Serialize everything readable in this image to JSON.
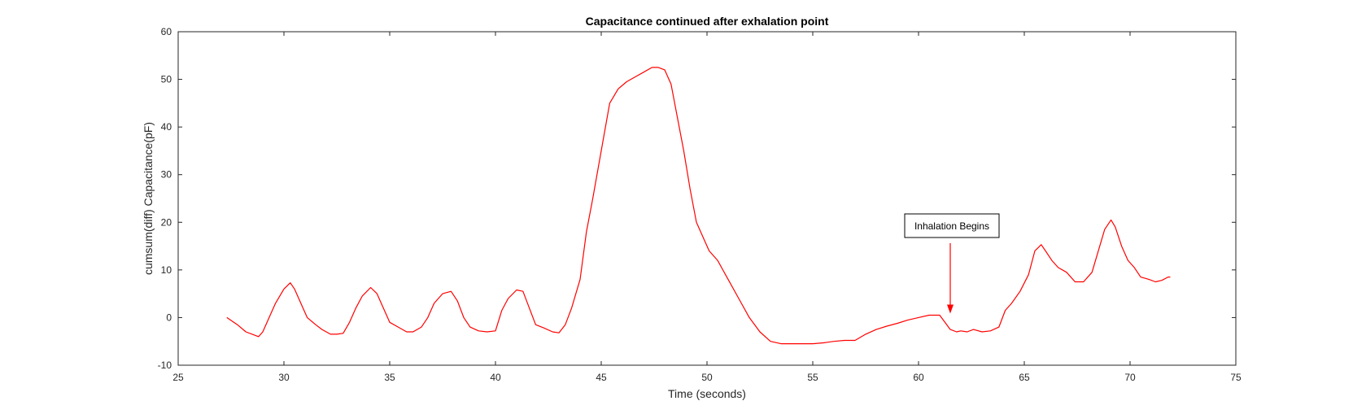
{
  "chart_data": {
    "type": "line",
    "title": "Capacitance continued after exhalation point",
    "xlabel": "Time (seconds)",
    "ylabel": "cumsum(diff) Capacitance(pF)",
    "xlim": [
      25,
      75
    ],
    "ylim": [
      -10,
      60
    ],
    "xticks": [
      25,
      30,
      35,
      40,
      45,
      50,
      55,
      60,
      65,
      70,
      75
    ],
    "yticks": [
      -10,
      0,
      10,
      20,
      30,
      40,
      50,
      60
    ],
    "grid": false,
    "series": [
      {
        "color": "#ff0000",
        "x": [
          27.3,
          27.8,
          28.2,
          28.5,
          28.8,
          29.0,
          29.3,
          29.6,
          30.0,
          30.3,
          30.5,
          30.8,
          31.1,
          31.5,
          31.8,
          32.2,
          32.5,
          32.8,
          33.1,
          33.4,
          33.7,
          34.1,
          34.4,
          34.7,
          35.0,
          35.4,
          35.8,
          36.1,
          36.5,
          36.8,
          37.1,
          37.5,
          37.9,
          38.2,
          38.5,
          38.8,
          39.2,
          39.6,
          40.0,
          40.3,
          40.6,
          41.0,
          41.3,
          41.6,
          41.9,
          42.3,
          42.7,
          43.0,
          43.3,
          43.6,
          44.0,
          44.3,
          44.6,
          45.0,
          45.4,
          45.8,
          46.2,
          46.6,
          47.0,
          47.4,
          47.7,
          48.0,
          48.3,
          48.6,
          48.9,
          49.2,
          49.5,
          49.8,
          50.1,
          50.5,
          51.0,
          51.5,
          52.0,
          52.5,
          53.0,
          53.5,
          54.0,
          54.5,
          55.0,
          55.5,
          56.0,
          56.5,
          57.0,
          57.5,
          58.0,
          58.5,
          59.0,
          59.5,
          60.0,
          60.5,
          61.0,
          61.5,
          61.8,
          62.0,
          62.3,
          62.6,
          63.0,
          63.4,
          63.8,
          64.1,
          64.4,
          64.8,
          65.2,
          65.5,
          65.8,
          66.0,
          66.3,
          66.6,
          67.0,
          67.4,
          67.8,
          68.2,
          68.5,
          68.8,
          69.1,
          69.3,
          69.6,
          69.9,
          70.2,
          70.5,
          70.9,
          71.2,
          71.5,
          71.8,
          71.9
        ],
        "y": [
          0,
          -1.5,
          -3,
          -3.5,
          -4,
          -3,
          0,
          3,
          6,
          7.3,
          6,
          3,
          0,
          -1.5,
          -2.5,
          -3.5,
          -3.5,
          -3.3,
          -1,
          2,
          4.5,
          6.3,
          5,
          2,
          -1,
          -2,
          -3,
          -3,
          -2,
          0,
          3,
          5,
          5.5,
          3.5,
          0,
          -2,
          -2.8,
          -3,
          -2.8,
          1.5,
          4,
          5.8,
          5.5,
          2,
          -1.5,
          -2.2,
          -3,
          -3.2,
          -1.5,
          2,
          8,
          18,
          25,
          35,
          45,
          48,
          49.5,
          50.5,
          51.5,
          52.5,
          52.5,
          52,
          49,
          42,
          35,
          27,
          20,
          17,
          14,
          12,
          8,
          4,
          0,
          -3,
          -5,
          -5.5,
          -5.5,
          -5.5,
          -5.5,
          -5.3,
          -5,
          -4.8,
          -4.8,
          -3.5,
          -2.5,
          -1.8,
          -1.2,
          -0.5,
          0,
          0.5,
          0.5,
          -2.5,
          -3,
          -2.8,
          -3,
          -2.5,
          -3,
          -2.8,
          -2,
          1.5,
          3,
          5.5,
          9,
          14,
          15.3,
          14,
          12,
          10.5,
          9.5,
          7.5,
          7.5,
          9.5,
          14,
          18.5,
          20.5,
          19,
          15,
          12,
          10.5,
          8.5,
          8,
          7.5,
          7.8,
          8.5,
          8.5
        ]
      }
    ],
    "annotation": {
      "text": "Inhalation Begins",
      "arrow_to": [
        61.5,
        0.5
      ],
      "arrow_color": "#ff0000"
    }
  }
}
